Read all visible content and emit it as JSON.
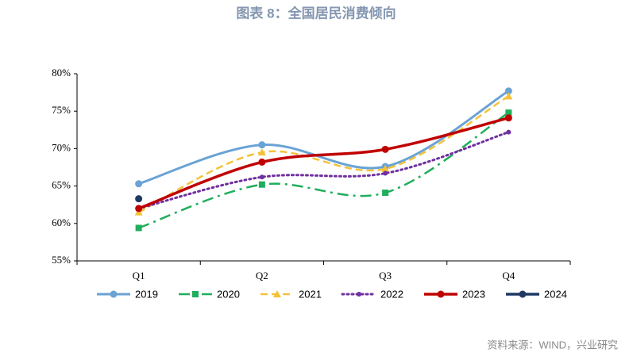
{
  "chart_data": {
    "type": "line",
    "title": "图表 8：全国居民消费倾向",
    "source": "资料来源：WIND，兴业研究",
    "categories": [
      "Q1",
      "Q2",
      "Q3",
      "Q4"
    ],
    "series": [
      {
        "name": "2019",
        "color": "#6aa3d5",
        "style": "solid",
        "marker": "circle",
        "values": [
          65.3,
          70.5,
          67.6,
          77.7
        ]
      },
      {
        "name": "2020",
        "color": "#1fae5b",
        "style": "dashdot",
        "marker": "square",
        "values": [
          59.4,
          65.2,
          64.1,
          74.8
        ]
      },
      {
        "name": "2021",
        "color": "#f5c13a",
        "style": "dashed",
        "marker": "triangle",
        "values": [
          61.5,
          69.5,
          67.3,
          77.0
        ]
      },
      {
        "name": "2022",
        "color": "#7030a0",
        "style": "dotted",
        "marker": "star",
        "values": [
          62.0,
          66.2,
          66.7,
          72.2
        ]
      },
      {
        "name": "2023",
        "color": "#c00000",
        "style": "solid-thick",
        "marker": "circle",
        "values": [
          62.0,
          68.2,
          69.9,
          74.1
        ]
      },
      {
        "name": "2024",
        "color": "#1f3864",
        "style": "none",
        "marker": "circle",
        "values": [
          63.3,
          null,
          null,
          null
        ]
      }
    ],
    "ylim": [
      55,
      80
    ],
    "yticks": [
      {
        "value": 55,
        "label": "55%"
      },
      {
        "value": 60,
        "label": "60%"
      },
      {
        "value": 65,
        "label": "65%"
      },
      {
        "value": 70,
        "label": "70%"
      },
      {
        "value": 75,
        "label": "75%"
      },
      {
        "value": 80,
        "label": "80%"
      }
    ],
    "legend": "bottom"
  }
}
